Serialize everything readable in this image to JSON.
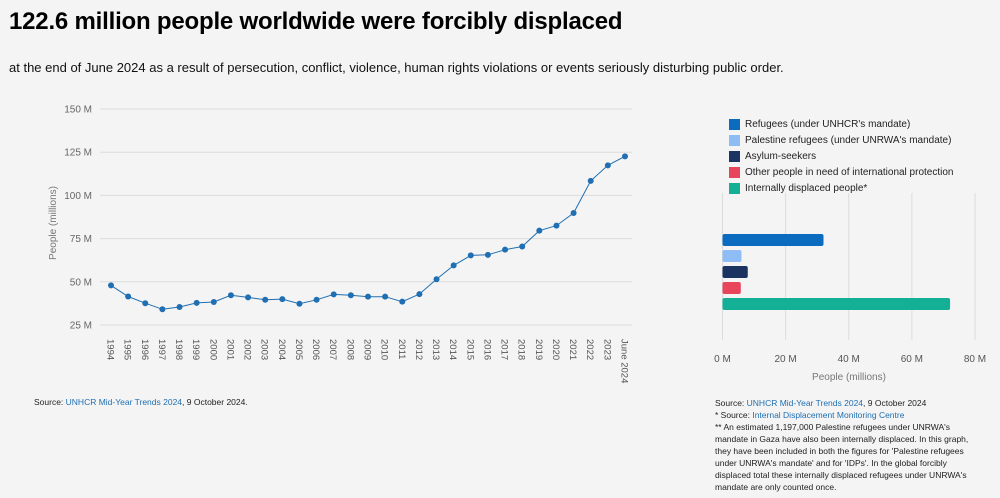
{
  "header": {
    "title": "122.6 million people worldwide were forcibly displaced",
    "subtitle": "at the end of June 2024 as a result of persecution, conflict, violence, human rights violations or events seriously disturbing public order."
  },
  "colors": {
    "background": "#f4f4f4",
    "line": "#1f6fb2",
    "grid": "#dcdcdc",
    "axis_text": "#666666",
    "link": "#1f6fb2"
  },
  "chart_data": [
    {
      "type": "line",
      "title": "",
      "xlabel": "",
      "ylabel": "People (millions)",
      "ylim": [
        25,
        150
      ],
      "yticks": [
        25,
        50,
        75,
        100,
        125,
        150
      ],
      "ytick_labels": [
        "25 M",
        "50 M",
        "75 M",
        "100 M",
        "125 M",
        "150 M"
      ],
      "grid": true,
      "x": [
        "1994",
        "1995",
        "1996",
        "1997",
        "1998",
        "1999",
        "2000",
        "2001",
        "2002",
        "2003",
        "2004",
        "2005",
        "2006",
        "2007",
        "2008",
        "2009",
        "2010",
        "2011",
        "2012",
        "2013",
        "2014",
        "2015",
        "2016",
        "2017",
        "2018",
        "2019",
        "2020",
        "2021",
        "2022",
        "2023",
        "June 2024"
      ],
      "series": [
        {
          "name": "Forcibly displaced people",
          "color": "#1f6fb2",
          "values": [
            47.9,
            41.5,
            37.6,
            34.1,
            35.4,
            37.8,
            38.3,
            42.2,
            41.0,
            39.6,
            40.0,
            37.3,
            39.6,
            42.7,
            42.2,
            41.4,
            41.4,
            38.5,
            42.9,
            51.5,
            59.5,
            65.3,
            65.6,
            68.6,
            70.4,
            79.6,
            82.5,
            89.8,
            108.4,
            117.4,
            122.6
          ]
        }
      ]
    },
    {
      "type": "bar",
      "orientation": "horizontal",
      "xlabel": "People (millions)",
      "xlim": [
        0,
        80
      ],
      "xticks": [
        0,
        20,
        40,
        60,
        80
      ],
      "xtick_labels": [
        "0 M",
        "20 M",
        "40 M",
        "60 M",
        "80 M"
      ],
      "grid": true,
      "legend_position": "top",
      "categories": [
        "Refugees (under UNHCR's mandate)",
        "Palestine refugees (under UNRWA's mandate)",
        "Asylum-seekers",
        "Other people in need of international protection",
        "Internally displaced people*"
      ],
      "values": [
        32.0,
        6.0,
        8.0,
        5.8,
        72.1
      ],
      "colors": [
        "#0b6cbf",
        "#8ebcf5",
        "#1b3360",
        "#e8455c",
        "#13b096"
      ]
    }
  ],
  "sources": {
    "left": {
      "prefix": "Source: ",
      "link": "UNHCR Mid-Year Trends 2024",
      "suffix": ", 9 October 2024."
    },
    "right": {
      "line1_prefix": "Source: ",
      "line1_link": "UNHCR Mid-Year Trends 2024",
      "line1_suffix": ", 9 October 2024",
      "line2_prefix": "* Source: ",
      "line2_link": "Internal Displacement Monitoring Centre",
      "note": "** An estimated 1,197,000 Palestine refugees under UNRWA's mandate in Gaza have also been internally displaced. In this graph, they have been included in both the figures for 'Palestine refugees under UNRWA's mandate' and for 'IDPs'. In the global forcibly displaced total these internally displaced refugees under UNRWA's mandate are only counted once."
    }
  }
}
